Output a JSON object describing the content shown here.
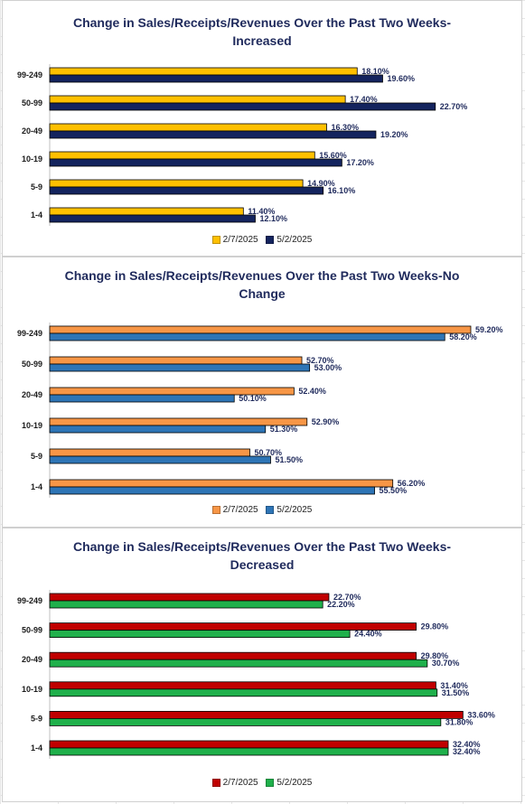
{
  "chart_data": [
    {
      "type": "bar",
      "orientation": "horizontal",
      "title": "Change in Sales/Receipts/Revenues Over the Past Two Weeks-Increased",
      "title_lines": [
        "Change in Sales/Receipts/Revenues Over the Past Two Weeks-",
        "Increased"
      ],
      "categories": [
        "99-249",
        "50-99",
        "20-49",
        "10-19",
        "5-9",
        "1-4"
      ],
      "series": [
        {
          "name": "2/7/2025",
          "values": [
            18.1,
            17.4,
            16.3,
            15.6,
            14.9,
            11.4
          ],
          "labels": [
            "18.10%",
            "17.40%",
            "16.30%",
            "15.60%",
            "14.90%",
            "11.40%"
          ],
          "color": "#ffc000"
        },
        {
          "name": "5/2/2025",
          "values": [
            19.6,
            22.7,
            19.2,
            17.2,
            16.1,
            12.1
          ],
          "labels": [
            "19.60%",
            "22.70%",
            "19.20%",
            "17.20%",
            "16.10%",
            "12.10%"
          ],
          "color": "#14245e"
        }
      ],
      "xlim": [
        0,
        25
      ],
      "legend": "bottom",
      "grid": false
    },
    {
      "type": "bar",
      "orientation": "horizontal",
      "title": "Change in Sales/Receipts/Revenues Over the Past Two Weeks-No Change",
      "title_lines": [
        "Change in Sales/Receipts/Revenues Over the Past Two Weeks-No",
        "Change"
      ],
      "categories": [
        "99-249",
        "50-99",
        "20-49",
        "10-19",
        "5-9",
        "1-4"
      ],
      "series": [
        {
          "name": "2/7/2025",
          "values": [
            59.2,
            52.7,
            52.4,
            52.9,
            50.7,
            56.2
          ],
          "labels": [
            "59.20%",
            "52.70%",
            "52.40%",
            "52.90%",
            "50.70%",
            "56.20%"
          ],
          "color": "#f79646"
        },
        {
          "name": "5/2/2025",
          "values": [
            58.2,
            53.0,
            50.1,
            51.3,
            51.5,
            55.5
          ],
          "labels": [
            "58.20%",
            "53.00%",
            "50.10%",
            "51.30%",
            "51.50%",
            "55.50%"
          ],
          "color": "#2e75b6"
        }
      ],
      "xlim": [
        43,
        60
      ],
      "legend": "bottom",
      "grid": false
    },
    {
      "type": "bar",
      "orientation": "horizontal",
      "title": "Change in Sales/Receipts/Revenues Over the Past Two Weeks-Decreased",
      "title_lines": [
        "Change in Sales/Receipts/Revenues Over the Past Two Weeks-",
        "Decreased"
      ],
      "categories": [
        "99-249",
        "50-99",
        "20-49",
        "10-19",
        "5-9",
        "1-4"
      ],
      "series": [
        {
          "name": "2/7/2025",
          "values": [
            22.7,
            29.8,
            29.8,
            31.4,
            33.6,
            32.4
          ],
          "labels": [
            "22.70%",
            "29.80%",
            "29.80%",
            "31.40%",
            "33.60%",
            "32.40%"
          ],
          "color": "#c00000"
        },
        {
          "name": "5/2/2025",
          "values": [
            22.2,
            24.4,
            30.7,
            31.5,
            31.8,
            32.4
          ],
          "labels": [
            "22.20%",
            "24.40%",
            "30.70%",
            "31.50%",
            "31.80%",
            "32.40%"
          ],
          "color": "#1fb04b"
        }
      ],
      "xlim": [
        0,
        36
      ],
      "legend": "bottom",
      "grid": false
    }
  ]
}
